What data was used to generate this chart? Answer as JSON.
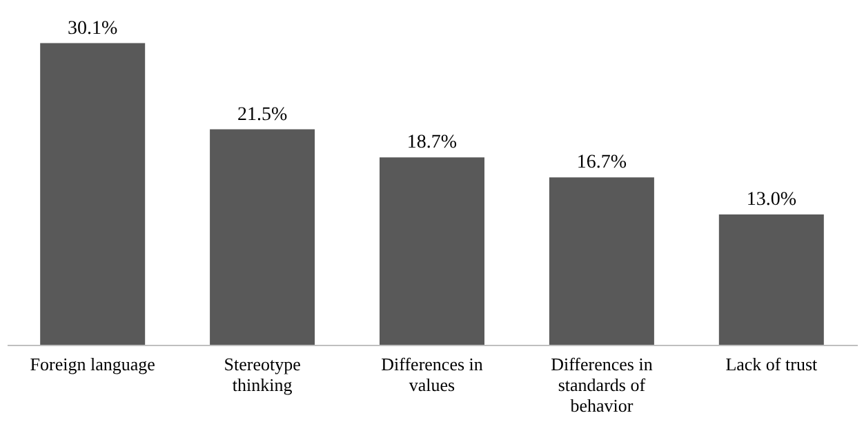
{
  "chart_data": {
    "type": "bar",
    "categories": [
      "Foreign language",
      "Stereotype thinking",
      "Differences in values",
      "Differences in standards of behavior",
      "Lack of trust"
    ],
    "values": [
      30.1,
      21.5,
      18.7,
      16.7,
      13.0
    ],
    "value_labels": [
      "30.1%",
      "21.5%",
      "18.7%",
      "16.7%",
      "13.0%"
    ],
    "color": "#595959",
    "tick_labels": "x"
  }
}
